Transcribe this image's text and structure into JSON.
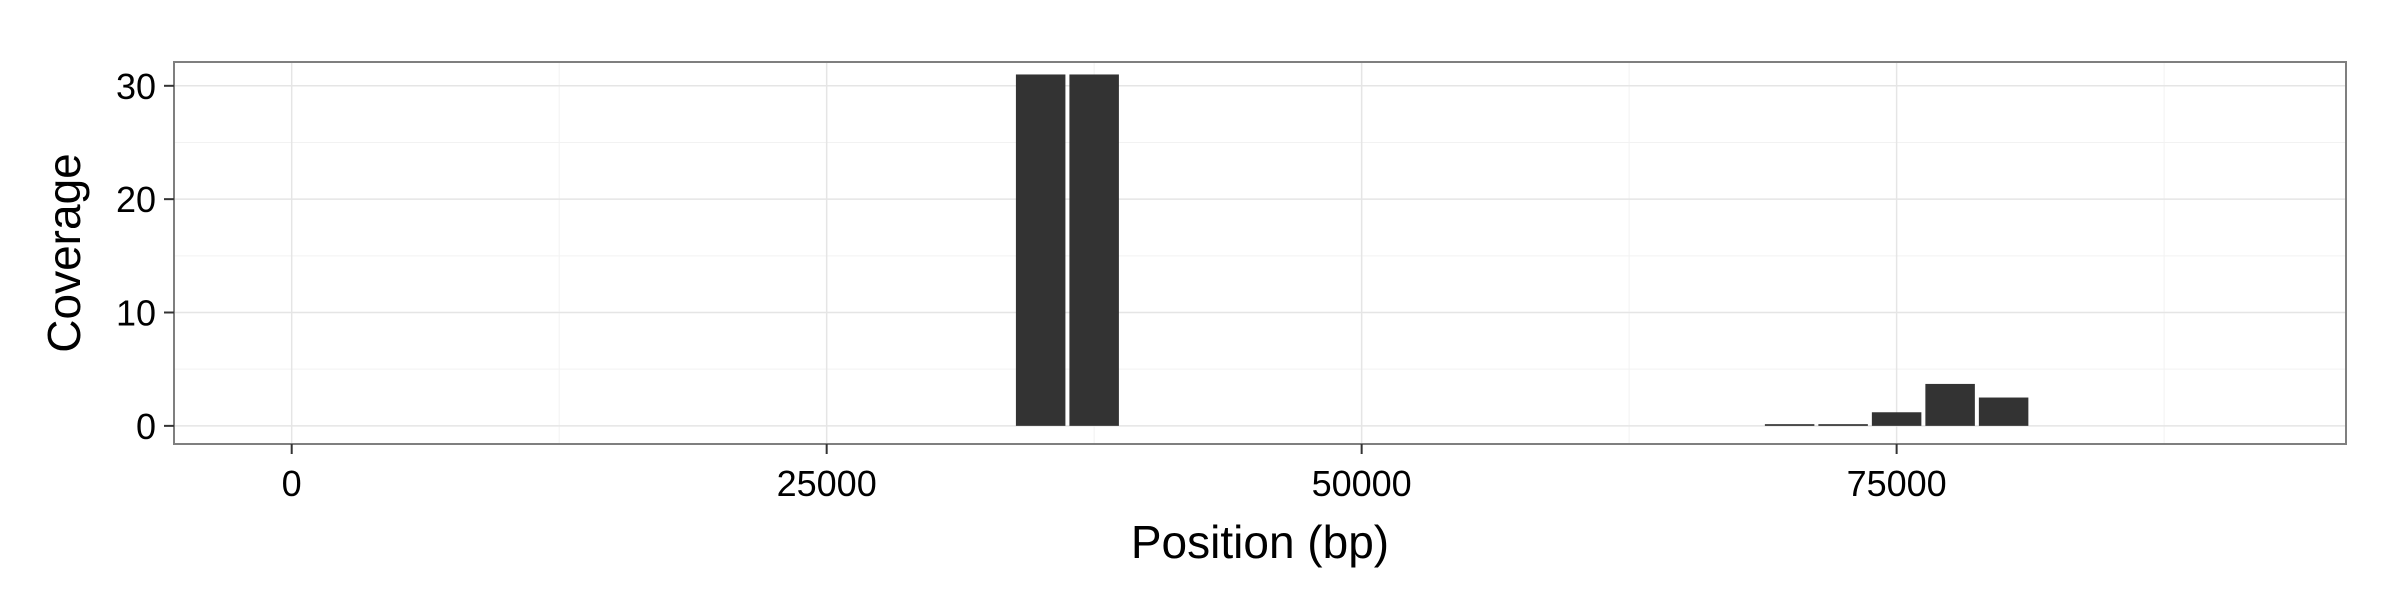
{
  "chart_data": {
    "type": "bar",
    "title": "",
    "xlabel": "Position (bp)",
    "ylabel": "Coverage",
    "xlim": [
      -5500,
      96000
    ],
    "ylim": [
      -1.6,
      32.1
    ],
    "grid": true,
    "legend": "none",
    "xticks": [
      0,
      25000,
      50000,
      75000
    ],
    "xtick_labels": [
      "0",
      "25000",
      "50000",
      "75000"
    ],
    "yticks": [
      0,
      10,
      20,
      30
    ],
    "ytick_labels": [
      "0",
      "10",
      "20",
      "30"
    ],
    "bin_width": 2500,
    "x": [
      35000,
      37500,
      70000,
      72500,
      75000,
      77500,
      80000
    ],
    "values": [
      31,
      31,
      0.15,
      0.15,
      1.2,
      3.7,
      2.5
    ],
    "colors": {
      "bar": "#333333",
      "panel_border": "#7f7f7f",
      "grid_major": "#e5e5e5",
      "grid_minor": "#f2f2f2"
    }
  }
}
